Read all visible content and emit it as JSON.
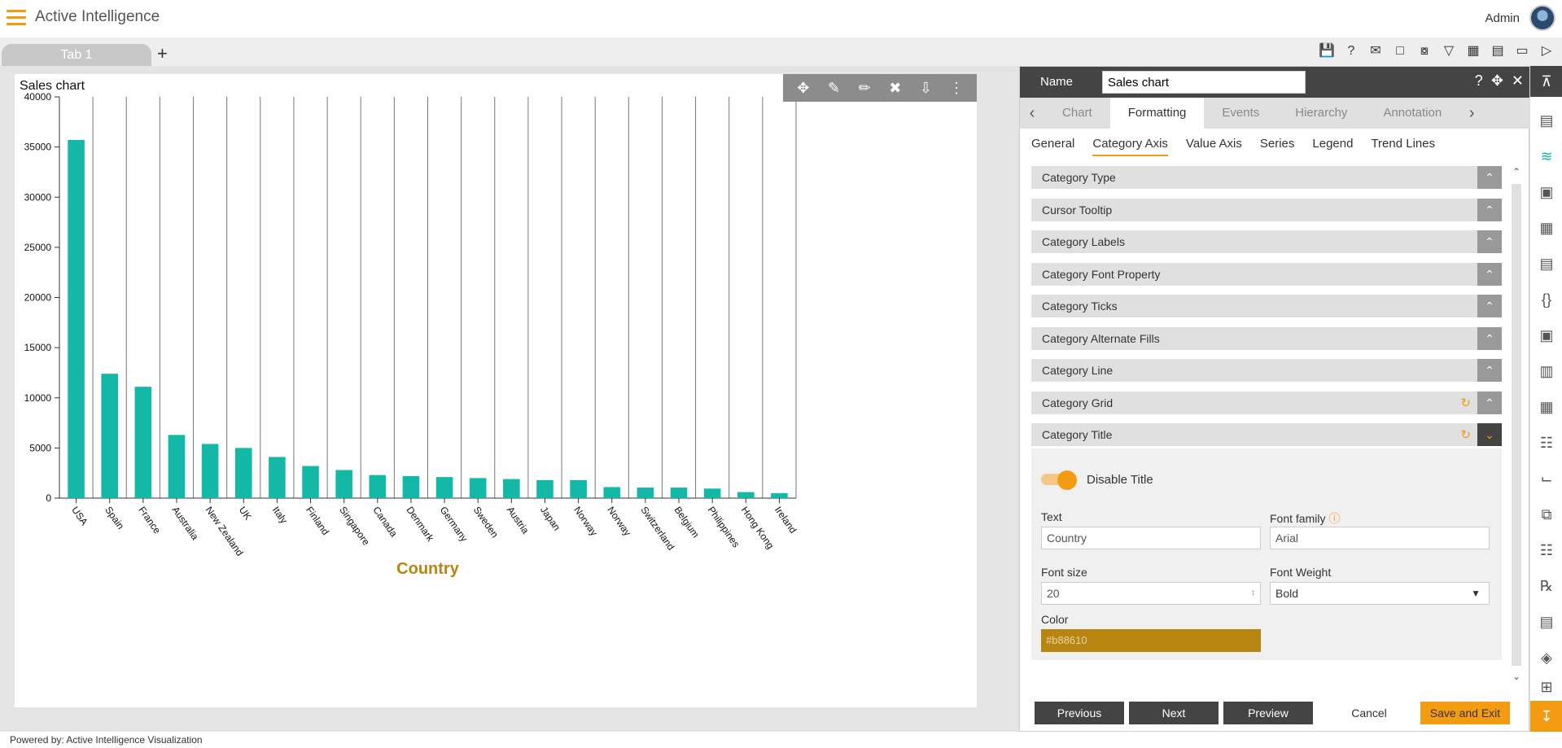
{
  "app": {
    "title": "Active Intelligence",
    "user": "Admin",
    "footer": "Powered by: Active Intelligence Visualization"
  },
  "tabs": {
    "tab1": "Tab 1",
    "add": "+"
  },
  "icons": {
    "top": [
      "save-icon",
      "help-icon",
      "mail-icon",
      "comment-icon",
      "filter-clear-icon",
      "filter-icon",
      "table-icon",
      "embed-icon",
      "devices-icon",
      "play-icon"
    ],
    "chart_toolbar": [
      "move-icon",
      "edit-line-icon",
      "edit-icon",
      "tools-icon",
      "download-icon",
      "more-icon"
    ],
    "rail": [
      "table-widget-icon",
      "line-chart-icon",
      "map-icon",
      "doc-image-icon",
      "document-icon",
      "braces-icon",
      "image-icon",
      "layout-icon",
      "calculator-icon",
      "tree-icon",
      "chart-small-icon",
      "copy-icon",
      "network-icon",
      "formula-icon",
      "clipboard-icon",
      "layers-icon",
      "grid-plus-icon"
    ]
  },
  "chart": {
    "title": "Sales chart"
  },
  "chart_data": {
    "type": "bar",
    "title": "Sales chart",
    "xlabel": "Country",
    "ylabel": "",
    "categories": [
      "USA",
      "Spain",
      "France",
      "Australia",
      "New Zealand",
      "UK",
      "Italy",
      "Finland",
      "Singapore",
      "Canada",
      "Denmark",
      "Germany",
      "Sweden",
      "Austria",
      "Japan",
      "Norway",
      "Norway",
      "Switzerland",
      "Belgium",
      "Philippines",
      "Hong Kong",
      "Ireland"
    ],
    "values": [
      35700,
      12400,
      11100,
      6300,
      5400,
      5000,
      4100,
      3200,
      2800,
      2300,
      2200,
      2100,
      2000,
      1900,
      1800,
      1800,
      1100,
      1050,
      1050,
      950,
      600,
      500
    ],
    "yticks": [
      "0",
      "5000",
      "10000",
      "15000",
      "20000",
      "25000",
      "30000",
      "35000",
      "40000"
    ],
    "ylim": [
      0,
      40000
    ],
    "bar_color": "#14b8a6",
    "title_color": "#b88610",
    "grid": "vertical"
  },
  "panel": {
    "name_label": "Name",
    "name_value": "Sales chart",
    "tabs": [
      "Chart",
      "Formatting",
      "Events",
      "Hierarchy",
      "Annotation"
    ],
    "subtabs": [
      "General",
      "Category Axis",
      "Value Axis",
      "Series",
      "Legend",
      "Trend Lines"
    ],
    "accordions": [
      "Category Type",
      "Cursor Tooltip",
      "Category Labels",
      "Category Font Property",
      "Category Ticks",
      "Category Alternate Fills",
      "Category Line",
      "Category Grid",
      "Category Title"
    ],
    "title_section": {
      "toggle_label": "Disable Title",
      "text_label": "Text",
      "text_value": "Country",
      "font_family_label": "Font family",
      "font_family_value": "Arial",
      "font_size_label": "Font size",
      "font_size_value": "20",
      "font_weight_label": "Font Weight",
      "font_weight_value": "Bold",
      "color_label": "Color",
      "color_value": "#b88610"
    },
    "footer": {
      "previous": "Previous",
      "next": "Next",
      "preview": "Preview",
      "cancel": "Cancel",
      "save_exit": "Save and Exit"
    }
  }
}
